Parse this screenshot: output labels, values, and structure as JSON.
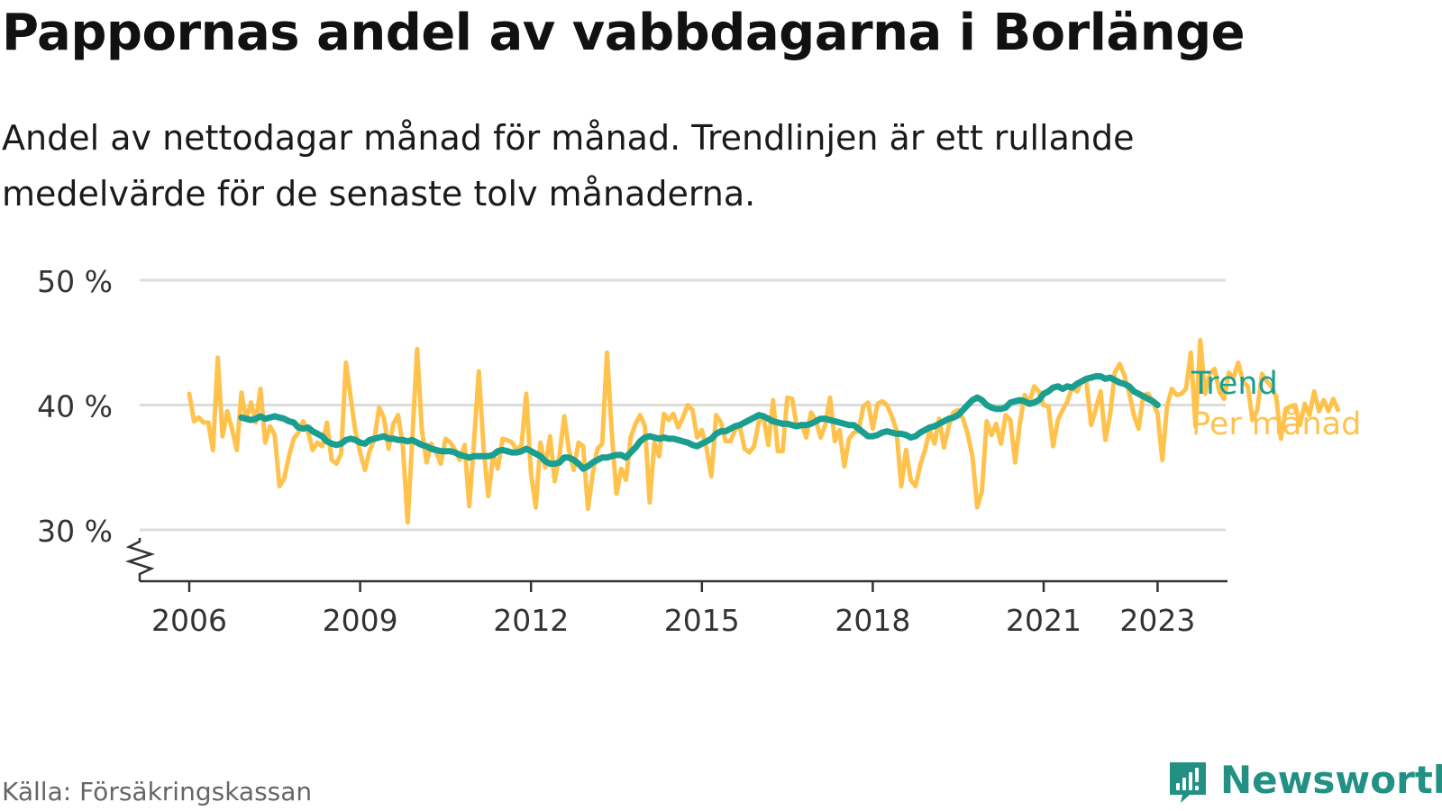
{
  "title": "Pappornas andel av vabbdagarna i Borlänge",
  "subtitle": "Andel av nettodagar månad för månad. Trendlinjen är ett rullande medelvärde för de senaste tolv månaderna.",
  "source": "Källa: Försäkringskassan",
  "brand": {
    "name": "Newsworthy",
    "icon": "newsworthy-logo-icon",
    "color": "#229184"
  },
  "chart_data": {
    "type": "line",
    "start": "2006-01",
    "frequency": "monthly",
    "y_unit": "%",
    "ylim": [
      30,
      50
    ],
    "yticks": [
      30,
      40,
      50
    ],
    "ytick_labels": [
      "30 %",
      "40 %",
      "50 %"
    ],
    "xtick_labels": [
      "2006",
      "2009",
      "2012",
      "2015",
      "2018",
      "2021",
      "2023"
    ],
    "grid": true,
    "y_axis_break": true,
    "legend": "inline-right",
    "series": [
      {
        "name": "Trend",
        "color": "#1a9e8f",
        "start": "2006-12",
        "values": [
          39.0,
          38.9,
          38.8,
          38.9,
          39.1,
          38.9,
          39.0,
          39.1,
          39.0,
          38.9,
          38.7,
          38.6,
          38.2,
          38.1,
          38.2,
          37.9,
          37.7,
          37.5,
          37.1,
          36.9,
          36.8,
          36.9,
          37.2,
          37.3,
          37.2,
          37.0,
          36.9,
          37.2,
          37.3,
          37.4,
          37.5,
          37.3,
          37.3,
          37.2,
          37.2,
          37.1,
          37.2,
          37.0,
          36.8,
          36.7,
          36.5,
          36.4,
          36.3,
          36.3,
          36.3,
          36.2,
          36.0,
          35.9,
          35.8,
          35.9,
          35.9,
          35.9,
          35.9,
          36.0,
          36.3,
          36.4,
          36.3,
          36.2,
          36.2,
          36.3,
          36.5,
          36.3,
          36.1,
          35.9,
          35.5,
          35.3,
          35.3,
          35.4,
          35.8,
          35.8,
          35.6,
          35.3,
          34.9,
          35.1,
          35.4,
          35.6,
          35.8,
          35.8,
          35.9,
          36.0,
          36.0,
          35.8,
          36.2,
          36.6,
          37.1,
          37.4,
          37.5,
          37.4,
          37.3,
          37.4,
          37.3,
          37.3,
          37.2,
          37.1,
          37.0,
          36.8,
          36.7,
          36.9,
          37.1,
          37.3,
          37.7,
          37.9,
          37.9,
          38.1,
          38.3,
          38.4,
          38.6,
          38.8,
          39.0,
          39.2,
          39.1,
          38.9,
          38.7,
          38.6,
          38.5,
          38.5,
          38.4,
          38.3,
          38.4,
          38.4,
          38.5,
          38.7,
          38.9,
          38.9,
          38.8,
          38.7,
          38.6,
          38.5,
          38.4,
          38.4,
          38.1,
          37.8,
          37.5,
          37.5,
          37.6,
          37.8,
          37.9,
          37.8,
          37.7,
          37.7,
          37.6,
          37.4,
          37.5,
          37.8,
          38.0,
          38.2,
          38.3,
          38.5,
          38.7,
          38.9,
          39.0,
          39.2,
          39.6,
          40.0,
          40.4,
          40.6,
          40.4,
          40.0,
          39.8,
          39.7,
          39.7,
          39.8,
          40.2,
          40.3,
          40.4,
          40.3,
          40.1,
          40.2,
          40.4,
          40.9,
          41.1,
          41.4,
          41.5,
          41.3,
          41.5,
          41.4,
          41.7,
          41.9,
          42.1,
          42.2,
          42.3,
          42.3,
          42.1,
          42.2,
          42.0,
          41.8,
          41.7,
          41.5,
          41.1,
          40.9,
          40.7,
          40.5,
          40.3,
          40.0
        ]
      },
      {
        "name": "Per månad",
        "color": "#ffc34d",
        "start": "2006-01",
        "values": [
          40.9,
          38.7,
          39.0,
          38.6,
          38.6,
          36.4,
          43.8,
          37.5,
          39.5,
          38.1,
          36.4,
          41.0,
          38.8,
          40.2,
          38.6,
          41.3,
          37.0,
          38.3,
          37.6,
          33.5,
          34.1,
          35.9,
          37.3,
          37.8,
          38.7,
          37.9,
          36.4,
          37.0,
          36.7,
          38.6,
          35.6,
          35.3,
          36.1,
          43.4,
          40.6,
          37.9,
          36.2,
          34.8,
          36.3,
          37.3,
          39.8,
          39.0,
          36.5,
          38.5,
          39.2,
          36.7,
          30.6,
          37.3,
          44.5,
          38.0,
          35.4,
          36.9,
          36.2,
          35.3,
          37.3,
          37.0,
          36.4,
          35.6,
          36.8,
          31.9,
          37.1,
          42.7,
          36.6,
          32.7,
          36.0,
          34.9,
          37.3,
          37.2,
          37.0,
          36.4,
          36.8,
          40.9,
          34.5,
          31.8,
          37.0,
          35.0,
          37.5,
          33.9,
          36.0,
          39.1,
          36.4,
          34.8,
          37.0,
          36.7,
          31.7,
          34.5,
          36.5,
          36.9,
          44.2,
          37.9,
          32.9,
          34.9,
          34.0,
          37.4,
          38.5,
          39.2,
          38.3,
          32.2,
          37.0,
          35.9,
          39.3,
          38.8,
          39.3,
          38.2,
          39.0,
          40.0,
          39.6,
          37.4,
          38.0,
          36.5,
          34.3,
          39.2,
          38.6,
          37.1,
          37.1,
          38.0,
          38.3,
          36.5,
          36.2,
          36.7,
          38.7,
          39.0,
          36.8,
          40.4,
          36.3,
          36.3,
          40.6,
          40.5,
          38.3,
          38.5,
          37.4,
          39.4,
          38.8,
          37.4,
          38.4,
          40.6,
          37.1,
          38.0,
          35.1,
          37.3,
          37.8,
          37.9,
          39.9,
          40.2,
          38.1,
          40.1,
          40.3,
          40.0,
          39.1,
          38.0,
          33.5,
          36.4,
          34.0,
          33.5,
          35.2,
          36.4,
          38.0,
          36.9,
          38.9,
          36.6,
          38.3,
          39.4,
          39.6,
          38.9,
          37.7,
          35.9,
          31.8,
          33.1,
          38.7,
          37.6,
          38.5,
          36.9,
          39.2,
          38.8,
          35.4,
          38.6,
          40.8,
          40.2,
          41.5,
          41.1,
          40.0,
          39.9,
          36.7,
          38.8,
          39.6,
          40.3,
          41.4,
          41.1,
          41.9,
          41.9,
          38.4,
          39.7,
          41.1,
          37.2,
          39.2,
          42.6,
          43.3,
          42.4,
          41.0,
          39.2,
          38.1,
          40.8,
          40.9,
          40.3,
          39.3,
          35.6,
          39.9,
          41.3,
          40.8,
          40.9,
          41.3,
          44.2,
          38.3,
          45.2,
          40.9,
          42.5,
          42.9,
          41.1,
          40.5,
          42.6,
          42.2,
          43.4,
          41.9,
          41.5,
          38.8,
          39.6,
          42.5,
          41.9,
          41.5,
          40.6,
          37.3,
          39.7,
          39.9,
          40.0,
          38.4,
          40.1,
          39.2,
          41.1,
          39.5,
          40.4,
          39.5,
          40.5,
          39.6
        ]
      }
    ]
  }
}
